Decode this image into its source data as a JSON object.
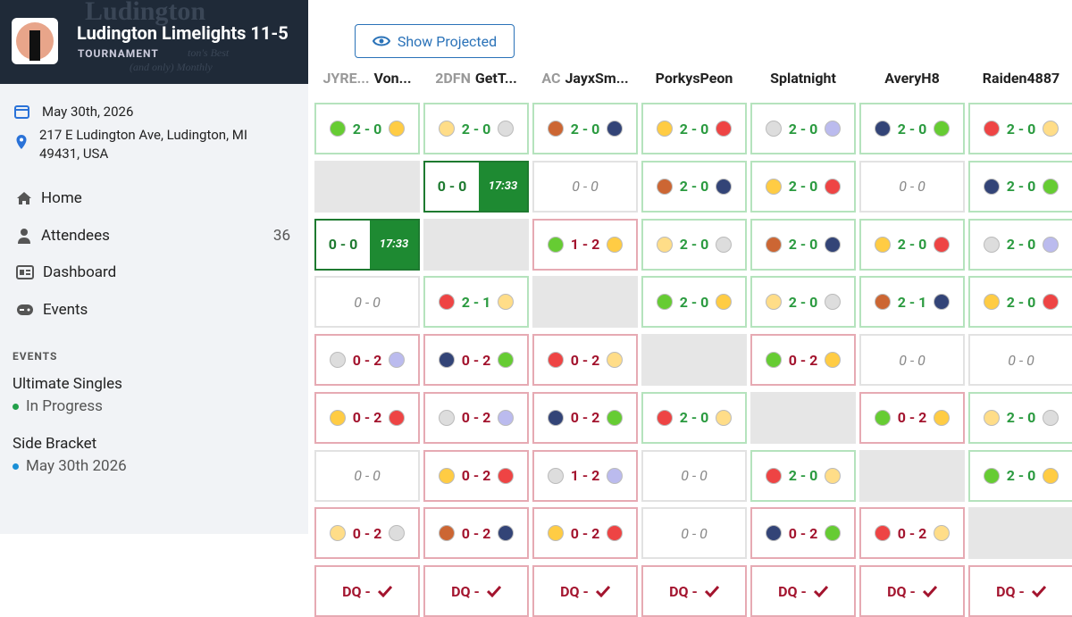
{
  "header": {
    "title": "Ludington Limelights 11-5",
    "subtitle": "TOURNAMENT",
    "banner_lines": [
      "Ludington",
      "ton's Best",
      "(and only) Monthly"
    ]
  },
  "details": {
    "date": "May 30th, 2026",
    "address": "217 E Ludington Ave, Ludington, MI 49431, USA"
  },
  "nav": [
    {
      "label": "Home"
    },
    {
      "label": "Attendees",
      "count": 36
    },
    {
      "label": "Dashboard"
    },
    {
      "label": "Events"
    }
  ],
  "events": {
    "heading": "EVENTS",
    "items": [
      {
        "name": "Ultimate Singles",
        "status": "In Progress",
        "dot": "#22a04a"
      },
      {
        "name": "Side Bracket",
        "status": "May 30th 2026",
        "dot": "#1a8fd6"
      }
    ]
  },
  "button": "Show Projected",
  "columns": [
    {
      "prefix": "JYRE...",
      "name": "Von..."
    },
    {
      "prefix": "2DFN",
      "name": "GetT..."
    },
    {
      "prefix": "AC",
      "name": "JayxSm..."
    },
    {
      "name": "PorkysPeon"
    },
    {
      "name": "Splatnight"
    },
    {
      "name": "AveryH8"
    },
    {
      "name": "Raiden4887"
    }
  ],
  "rows": [
    [
      {
        "status": "win",
        "score": "2 - 0"
      },
      {
        "status": "win",
        "score": "2 - 0"
      },
      {
        "status": "win",
        "score": "2 - 0"
      },
      {
        "status": "win",
        "score": "2 - 0"
      },
      {
        "status": "win",
        "score": "2 - 0"
      },
      {
        "status": "win",
        "score": "2 - 0"
      },
      {
        "status": "win",
        "score": "2 - 0"
      }
    ],
    [
      {
        "status": "empty"
      },
      {
        "status": "live",
        "score": "0 - 0",
        "time": "17:33"
      },
      {
        "status": "neutral",
        "score": "0 - 0"
      },
      {
        "status": "win",
        "score": "2 - 0"
      },
      {
        "status": "win",
        "score": "2 - 0"
      },
      {
        "status": "neutral",
        "score": "0 - 0"
      },
      {
        "status": "win",
        "score": "2 - 0"
      }
    ],
    [
      {
        "status": "live",
        "score": "0 - 0",
        "time": "17:33"
      },
      {
        "status": "empty"
      },
      {
        "status": "loss",
        "score": "1 - 2"
      },
      {
        "status": "win",
        "score": "2 - 0"
      },
      {
        "status": "win",
        "score": "2 - 0"
      },
      {
        "status": "win",
        "score": "2 - 0"
      },
      {
        "status": "win",
        "score": "2 - 0"
      }
    ],
    [
      {
        "status": "neutral",
        "score": "0 - 0"
      },
      {
        "status": "win",
        "score": "2 - 1"
      },
      {
        "status": "empty"
      },
      {
        "status": "win",
        "score": "2 - 0"
      },
      {
        "status": "win",
        "score": "2 - 0"
      },
      {
        "status": "win",
        "score": "2 - 1"
      },
      {
        "status": "win",
        "score": "2 - 0"
      }
    ],
    [
      {
        "status": "loss",
        "score": "0 - 2"
      },
      {
        "status": "loss",
        "score": "0 - 2"
      },
      {
        "status": "loss",
        "score": "0 - 2"
      },
      {
        "status": "empty"
      },
      {
        "status": "loss",
        "score": "0 - 2"
      },
      {
        "status": "neutral",
        "score": "0 - 0"
      },
      {
        "status": "neutral",
        "score": "0 - 0"
      }
    ],
    [
      {
        "status": "loss",
        "score": "0 - 2"
      },
      {
        "status": "loss",
        "score": "0 - 2"
      },
      {
        "status": "loss",
        "score": "0 - 2"
      },
      {
        "status": "win",
        "score": "2 - 0"
      },
      {
        "status": "empty"
      },
      {
        "status": "loss",
        "score": "0 - 2"
      },
      {
        "status": "win",
        "score": "2 - 0"
      }
    ],
    [
      {
        "status": "neutral",
        "score": "0 - 0"
      },
      {
        "status": "loss",
        "score": "0 - 2"
      },
      {
        "status": "loss",
        "score": "1 - 2"
      },
      {
        "status": "neutral",
        "score": "0 - 0"
      },
      {
        "status": "win",
        "score": "2 - 0"
      },
      {
        "status": "empty"
      },
      {
        "status": "win",
        "score": "2 - 0"
      }
    ],
    [
      {
        "status": "loss",
        "score": "0 - 2"
      },
      {
        "status": "loss",
        "score": "0 - 2"
      },
      {
        "status": "loss",
        "score": "0 - 2"
      },
      {
        "status": "neutral",
        "score": "0 - 0"
      },
      {
        "status": "loss",
        "score": "0 - 2"
      },
      {
        "status": "loss",
        "score": "0 - 2"
      },
      {
        "status": "empty"
      }
    ],
    [
      {
        "status": "dq",
        "score": "DQ -"
      },
      {
        "status": "dq",
        "score": "DQ -"
      },
      {
        "status": "dq",
        "score": "DQ -"
      },
      {
        "status": "dq",
        "score": "DQ -"
      },
      {
        "status": "dq",
        "score": "DQ -"
      },
      {
        "status": "dq",
        "score": "DQ -"
      },
      {
        "status": "dq",
        "score": "DQ -"
      }
    ]
  ]
}
